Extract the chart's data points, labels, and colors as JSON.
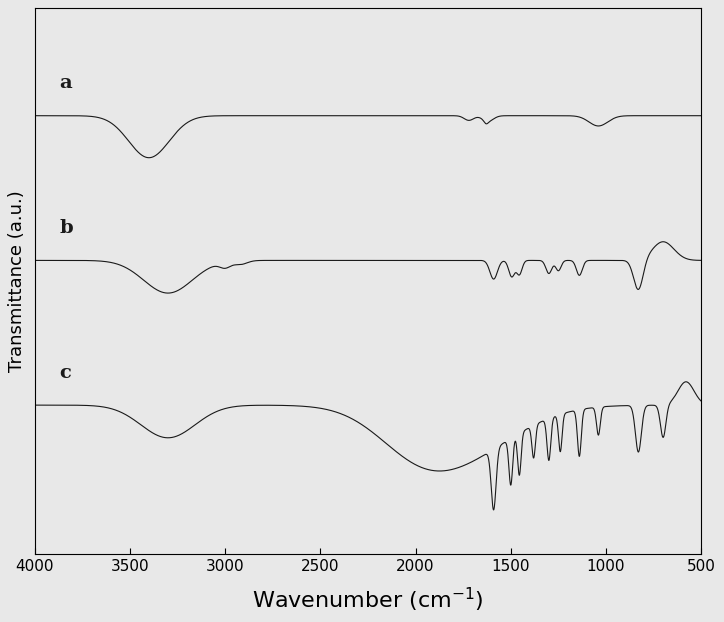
{
  "title": "",
  "xlabel": "Wavenumber (cm$^{-1}$)",
  "ylabel": "Transmittance (a.u.)",
  "x_min": 500,
  "x_max": 4000,
  "x_ticks": [
    4000,
    3500,
    3000,
    2500,
    2000,
    1500,
    1000,
    500
  ],
  "curve_labels": [
    "a",
    "b",
    "c"
  ],
  "offsets": [
    0.62,
    0.31,
    0.0
  ],
  "line_color": "#1a1a1a",
  "background_color": "#e8e8e8",
  "label_fontsize": 14
}
